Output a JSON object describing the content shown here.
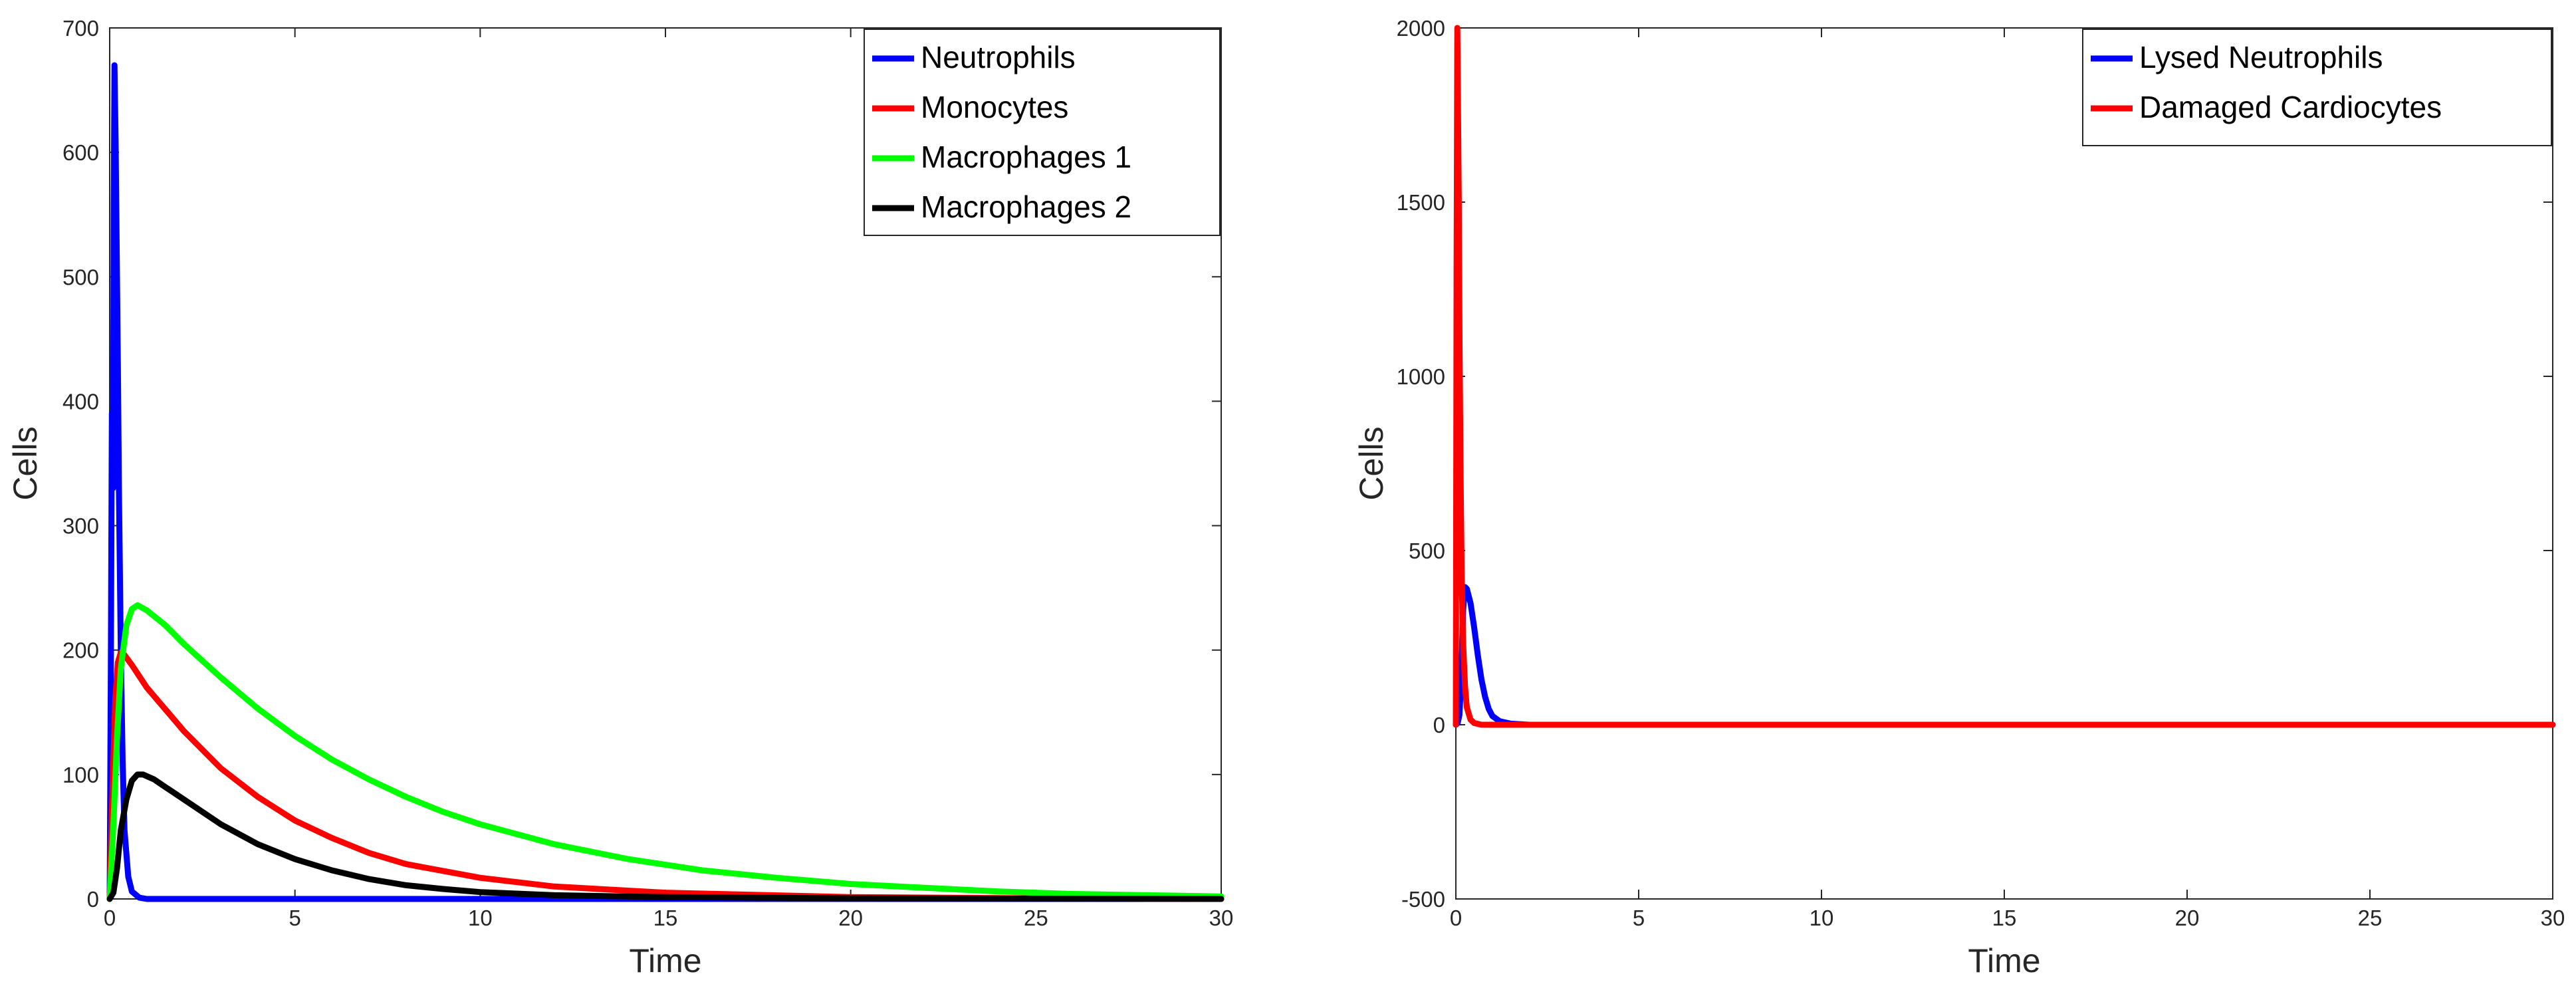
{
  "chart_data": [
    {
      "type": "line",
      "title": "",
      "xlabel": "Time",
      "ylabel": "Cells",
      "xlim": [
        0,
        30
      ],
      "ylim": [
        0,
        700
      ],
      "xticks": [
        0,
        5,
        10,
        15,
        20,
        25,
        30
      ],
      "yticks": [
        0,
        100,
        200,
        300,
        400,
        500,
        600,
        700
      ],
      "grid": false,
      "legend_position": "top-right",
      "series": [
        {
          "name": "Neutrophils",
          "color": "#0000ff",
          "points": [
            [
              0,
              0
            ],
            [
              0.03,
              180
            ],
            [
              0.06,
              390
            ],
            [
              0.09,
              330
            ],
            [
              0.11,
              560
            ],
            [
              0.13,
              670
            ],
            [
              0.16,
              610
            ],
            [
              0.19,
              520
            ],
            [
              0.22,
              430
            ],
            [
              0.25,
              330
            ],
            [
              0.3,
              200
            ],
            [
              0.35,
              110
            ],
            [
              0.4,
              55
            ],
            [
              0.5,
              18
            ],
            [
              0.6,
              6
            ],
            [
              0.8,
              1
            ],
            [
              1,
              0
            ],
            [
              30,
              0
            ]
          ]
        },
        {
          "name": "Monocytes",
          "color": "#ff0000",
          "points": [
            [
              0,
              0
            ],
            [
              0.05,
              60
            ],
            [
              0.1,
              110
            ],
            [
              0.15,
              160
            ],
            [
              0.22,
              190
            ],
            [
              0.3,
              198
            ],
            [
              0.4,
              196
            ],
            [
              0.6,
              188
            ],
            [
              1,
              170
            ],
            [
              2,
              135
            ],
            [
              3,
              105
            ],
            [
              4,
              82
            ],
            [
              5,
              63
            ],
            [
              6,
              49
            ],
            [
              7,
              37
            ],
            [
              8,
              28
            ],
            [
              10,
              17
            ],
            [
              12,
              10
            ],
            [
              15,
              5
            ],
            [
              20,
              1.5
            ],
            [
              25,
              0.5
            ],
            [
              30,
              0
            ]
          ]
        },
        {
          "name": "Macrophages 1",
          "color": "#00ff00",
          "points": [
            [
              0,
              0
            ],
            [
              0.1,
              60
            ],
            [
              0.2,
              130
            ],
            [
              0.3,
              185
            ],
            [
              0.45,
              220
            ],
            [
              0.6,
              233
            ],
            [
              0.75,
              236
            ],
            [
              1,
              232
            ],
            [
              1.5,
              220
            ],
            [
              2,
              205
            ],
            [
              3,
              178
            ],
            [
              4,
              153
            ],
            [
              5,
              131
            ],
            [
              6,
              112
            ],
            [
              7,
              96
            ],
            [
              8,
              82
            ],
            [
              9,
              70
            ],
            [
              10,
              60
            ],
            [
              12,
              44
            ],
            [
              14,
              32
            ],
            [
              16,
              23
            ],
            [
              18,
              17
            ],
            [
              20,
              12
            ],
            [
              22,
              9
            ],
            [
              24,
              6
            ],
            [
              26,
              4
            ],
            [
              28,
              3
            ],
            [
              30,
              2
            ]
          ]
        },
        {
          "name": "Macrophages 2",
          "color": "#000000",
          "points": [
            [
              0,
              0
            ],
            [
              0.1,
              5
            ],
            [
              0.2,
              25
            ],
            [
              0.3,
              55
            ],
            [
              0.45,
              80
            ],
            [
              0.6,
              95
            ],
            [
              0.75,
              100
            ],
            [
              0.9,
              100
            ],
            [
              1.2,
              96
            ],
            [
              1.5,
              90
            ],
            [
              2,
              80
            ],
            [
              3,
              60
            ],
            [
              4,
              44
            ],
            [
              5,
              32
            ],
            [
              6,
              23
            ],
            [
              7,
              16
            ],
            [
              8,
              11
            ],
            [
              9,
              8
            ],
            [
              10,
              5.5
            ],
            [
              12,
              3
            ],
            [
              15,
              1.5
            ],
            [
              20,
              0.5
            ],
            [
              30,
              0
            ]
          ]
        }
      ]
    },
    {
      "type": "line",
      "title": "",
      "xlabel": "Time",
      "ylabel": "Cells",
      "xlim": [
        0,
        30
      ],
      "ylim": [
        -500,
        2000
      ],
      "xticks": [
        0,
        5,
        10,
        15,
        20,
        25,
        30
      ],
      "yticks": [
        -500,
        0,
        500,
        1000,
        1500,
        2000
      ],
      "grid": false,
      "legend_position": "top-right",
      "series": [
        {
          "name": "Lysed Neutrophils",
          "color": "#0000ff",
          "points": [
            [
              0,
              0
            ],
            [
              0.05,
              5
            ],
            [
              0.1,
              30
            ],
            [
              0.15,
              150
            ],
            [
              0.2,
              330
            ],
            [
              0.25,
              395
            ],
            [
              0.3,
              390
            ],
            [
              0.4,
              350
            ],
            [
              0.5,
              280
            ],
            [
              0.6,
              200
            ],
            [
              0.7,
              130
            ],
            [
              0.8,
              80
            ],
            [
              0.9,
              45
            ],
            [
              1,
              25
            ],
            [
              1.2,
              10
            ],
            [
              1.5,
              3
            ],
            [
              2,
              0
            ],
            [
              30,
              0
            ]
          ]
        },
        {
          "name": "Damaged Cardiocytes",
          "color": "#ff0000",
          "points": [
            [
              0,
              0
            ],
            [
              0.02,
              1300
            ],
            [
              0.04,
              2000
            ],
            [
              0.06,
              1750
            ],
            [
              0.08,
              1500
            ],
            [
              0.1,
              1100
            ],
            [
              0.13,
              700
            ],
            [
              0.16,
              420
            ],
            [
              0.2,
              230
            ],
            [
              0.25,
              110
            ],
            [
              0.3,
              50
            ],
            [
              0.4,
              15
            ],
            [
              0.5,
              5
            ],
            [
              0.7,
              0
            ],
            [
              30,
              0
            ]
          ]
        }
      ]
    }
  ]
}
